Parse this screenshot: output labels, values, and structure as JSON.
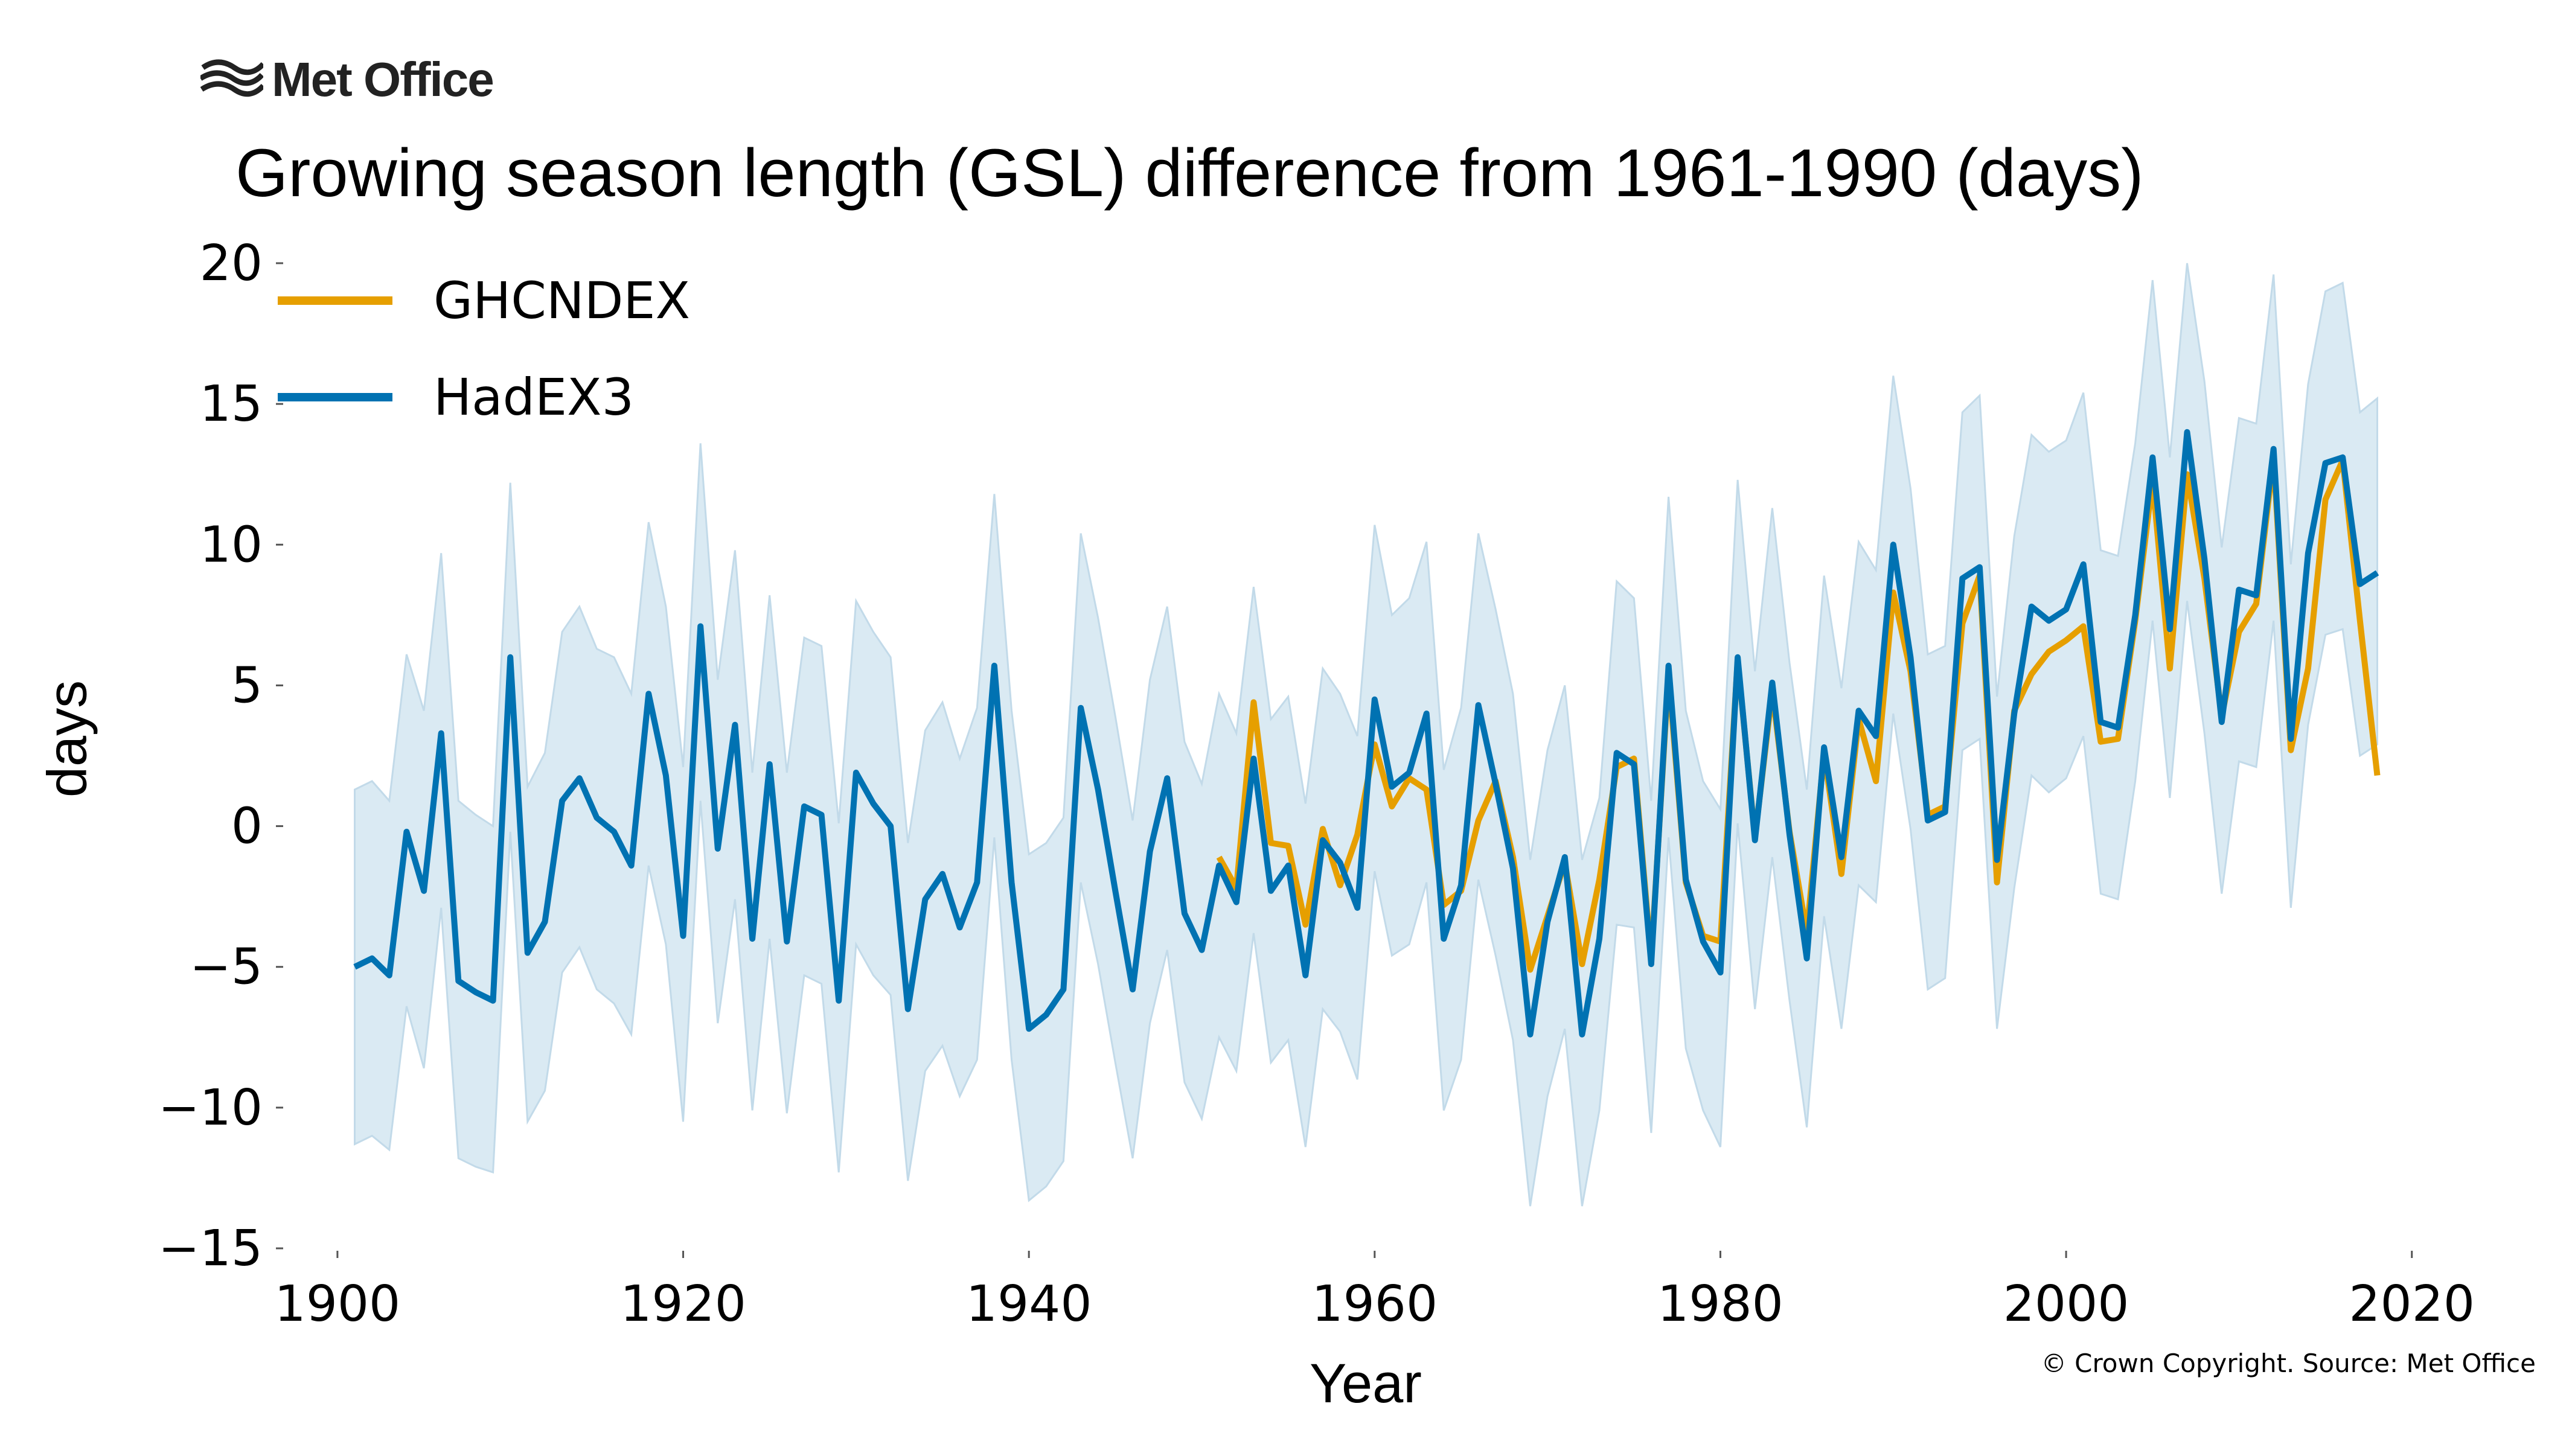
{
  "branding": {
    "logo_text": "Met Office"
  },
  "header": {
    "title": "Growing season length (GSL) difference from 1961-1990 (days)"
  },
  "footer": {
    "copyright": "© Crown Copyright. Source: Met Office"
  },
  "colors": {
    "ghcndex": "#e69f00",
    "hadex3": "#0072b2",
    "band": "#d4e6f1"
  },
  "chart_data": {
    "type": "line",
    "title": "Growing season length (GSL) difference from 1961-1990 (days)",
    "xlabel": "Year",
    "ylabel": "days",
    "xlim": [
      1897,
      2022
    ],
    "ylim": [
      -15,
      20
    ],
    "xticks": [
      1900,
      1920,
      1940,
      1960,
      1980,
      2000,
      2020
    ],
    "yticks": [
      -15,
      -10,
      -5,
      0,
      5,
      10,
      15,
      20
    ],
    "ytick_labels": [
      "−15",
      "−10",
      "−5",
      "0",
      "5",
      "10",
      "15",
      "20"
    ],
    "grid": false,
    "legend": {
      "position": "top-left",
      "entries": [
        "GHCNDEX",
        "HadEX3"
      ]
    },
    "series": [
      {
        "name": "HadEX3",
        "color": "#0072b2",
        "x": [
          1901,
          1902,
          1903,
          1904,
          1905,
          1906,
          1907,
          1908,
          1909,
          1910,
          1911,
          1912,
          1913,
          1914,
          1915,
          1916,
          1917,
          1918,
          1919,
          1920,
          1921,
          1922,
          1923,
          1924,
          1925,
          1926,
          1927,
          1928,
          1929,
          1930,
          1931,
          1932,
          1933,
          1934,
          1935,
          1936,
          1937,
          1938,
          1939,
          1940,
          1941,
          1942,
          1943,
          1944,
          1945,
          1946,
          1947,
          1948,
          1949,
          1950,
          1951,
          1952,
          1953,
          1954,
          1955,
          1956,
          1957,
          1958,
          1959,
          1960,
          1961,
          1962,
          1963,
          1964,
          1965,
          1966,
          1967,
          1968,
          1969,
          1970,
          1971,
          1972,
          1973,
          1974,
          1975,
          1976,
          1977,
          1978,
          1979,
          1980,
          1981,
          1982,
          1983,
          1984,
          1985,
          1986,
          1987,
          1988,
          1989,
          1990,
          1991,
          1992,
          1993,
          1994,
          1995,
          1996,
          1997,
          1998,
          1999,
          2000,
          2001,
          2002,
          2003,
          2004,
          2005,
          2006,
          2007,
          2008,
          2009,
          2010,
          2011,
          2012,
          2013,
          2014,
          2015,
          2016,
          2017,
          2018
        ],
        "values": [
          -5.0,
          -4.7,
          -5.3,
          -0.2,
          -2.3,
          3.3,
          -5.5,
          -5.9,
          -6.2,
          6.0,
          -4.5,
          -3.4,
          0.9,
          1.7,
          0.3,
          -0.2,
          -1.4,
          4.7,
          1.8,
          -3.9,
          7.1,
          -0.8,
          3.6,
          -4.0,
          2.2,
          -4.1,
          0.7,
          0.4,
          -6.2,
          1.9,
          0.8,
          0.0,
          -6.5,
          -2.6,
          -1.7,
          -3.6,
          -2.0,
          5.7,
          -2.0,
          -7.2,
          -6.7,
          -5.8,
          4.2,
          1.3,
          -2.3,
          -5.8,
          -0.9,
          1.7,
          -3.1,
          -4.4,
          -1.4,
          -2.7,
          2.4,
          -2.3,
          -1.4,
          -5.3,
          -0.5,
          -1.3,
          -2.9,
          4.5,
          1.4,
          1.9,
          4.0,
          -4.0,
          -2.1,
          4.3,
          1.5,
          -1.5,
          -7.4,
          -3.4,
          -1.1,
          -7.4,
          -4.0,
          2.6,
          2.2,
          -4.9,
          5.7,
          -1.9,
          -4.1,
          -5.2,
          6.0,
          -0.5,
          5.1,
          -0.3,
          -4.7,
          2.8,
          -1.1,
          4.1,
          3.2,
          10.0,
          6.0,
          0.2,
          0.5,
          8.8,
          9.2,
          -1.2,
          4.0,
          7.8,
          7.3,
          7.7,
          9.3,
          3.7,
          3.5,
          7.5,
          13.1,
          7.0,
          14.0,
          9.5,
          3.7,
          8.4,
          8.2,
          13.4,
          3.1,
          9.7,
          12.9,
          13.1,
          8.6,
          9.0
        ]
      },
      {
        "name": "GHCNDEX",
        "color": "#e69f00",
        "x": [
          1951,
          1952,
          1953,
          1954,
          1955,
          1956,
          1957,
          1958,
          1959,
          1960,
          1961,
          1962,
          1963,
          1964,
          1965,
          1966,
          1967,
          1968,
          1969,
          1970,
          1971,
          1972,
          1973,
          1974,
          1975,
          1976,
          1977,
          1978,
          1979,
          1980,
          1981,
          1982,
          1983,
          1984,
          1985,
          1986,
          1987,
          1988,
          1989,
          1990,
          1991,
          1992,
          1993,
          1994,
          1995,
          1996,
          1997,
          1998,
          1999,
          2000,
          2001,
          2002,
          2003,
          2004,
          2005,
          2006,
          2007,
          2008,
          2009,
          2010,
          2011,
          2012,
          2013,
          2014,
          2015,
          2016,
          2017,
          2018
        ],
        "values": [
          -1.1,
          -2.2,
          4.4,
          -0.6,
          -0.7,
          -3.5,
          -0.1,
          -2.1,
          -0.3,
          2.9,
          0.7,
          1.7,
          1.3,
          -2.8,
          -2.3,
          0.2,
          1.6,
          -1.1,
          -5.1,
          -3.2,
          -1.3,
          -4.9,
          -1.9,
          2.1,
          2.4,
          -4.7,
          5.4,
          -2.0,
          -3.9,
          -4.1,
          5.9,
          -0.4,
          4.8,
          -0.2,
          -3.8,
          2.6,
          -1.7,
          3.8,
          1.6,
          8.3,
          5.5,
          0.4,
          0.7,
          7.2,
          8.9,
          -2.0,
          4.1,
          5.4,
          6.2,
          6.6,
          7.1,
          3.0,
          3.1,
          7.3,
          12.3,
          5.6,
          12.5,
          8.8,
          3.9,
          6.9,
          7.9,
          13.1,
          2.7,
          5.6,
          11.6,
          13.0,
          7.3,
          1.8
        ]
      }
    ],
    "band": {
      "description_series": "HadEX3",
      "x": [
        1901,
        1902,
        1903,
        1904,
        1905,
        1906,
        1907,
        1908,
        1909,
        1910,
        1911,
        1912,
        1913,
        1914,
        1915,
        1916,
        1917,
        1918,
        1919,
        1920,
        1921,
        1922,
        1923,
        1924,
        1925,
        1926,
        1927,
        1928,
        1929,
        1930,
        1931,
        1932,
        1933,
        1934,
        1935,
        1936,
        1937,
        1938,
        1939,
        1940,
        1941,
        1942,
        1943,
        1944,
        1945,
        1946,
        1947,
        1948,
        1949,
        1950,
        1951,
        1952,
        1953,
        1954,
        1955,
        1956,
        1957,
        1958,
        1959,
        1960,
        1961,
        1962,
        1963,
        1964,
        1965,
        1966,
        1967,
        1968,
        1969,
        1970,
        1971,
        1972,
        1973,
        1974,
        1975,
        1976,
        1977,
        1978,
        1979,
        1980,
        1981,
        1982,
        1983,
        1984,
        1985,
        1986,
        1987,
        1988,
        1989,
        1990,
        1991,
        1992,
        1993,
        1994,
        1995,
        1996,
        1997,
        1998,
        1999,
        2000,
        2001,
        2002,
        2003,
        2004,
        2005,
        2006,
        2007,
        2008,
        2009,
        2010,
        2011,
        2012,
        2013,
        2014,
        2015,
        2016,
        2017,
        2018
      ],
      "upper": [
        1.3,
        1.6,
        0.9,
        6.1,
        4.1,
        9.7,
        0.9,
        0.4,
        0.0,
        12.2,
        1.4,
        2.6,
        6.9,
        7.8,
        6.3,
        6.0,
        4.7,
        10.8,
        7.8,
        2.1,
        13.6,
        5.2,
        9.8,
        1.9,
        8.2,
        1.9,
        6.7,
        6.4,
        0.1,
        8.0,
        6.9,
        6.0,
        -0.6,
        3.4,
        4.4,
        2.4,
        4.2,
        11.8,
        4.1,
        -1.0,
        -0.6,
        0.3,
        10.4,
        7.4,
        3.9,
        0.2,
        5.2,
        7.8,
        3.0,
        1.5,
        4.7,
        3.3,
        8.5,
        3.8,
        4.6,
        0.8,
        5.6,
        4.7,
        3.2,
        10.7,
        7.5,
        8.1,
        10.1,
        2.0,
        4.2,
        10.4,
        7.7,
        4.7,
        -1.2,
        2.7,
        5.0,
        -1.2,
        1.0,
        8.7,
        8.1,
        0.9,
        11.7,
        4.1,
        1.6,
        0.6,
        12.3,
        5.5,
        11.3,
        5.8,
        1.3,
        8.9,
        4.9,
        10.1,
        9.1,
        16.0,
        12.0,
        6.1,
        6.4,
        14.7,
        15.3,
        4.6,
        10.3,
        13.9,
        13.3,
        13.7,
        15.4,
        9.8,
        9.6,
        13.6,
        19.4,
        13.1,
        20.0,
        15.8,
        9.9,
        14.5,
        14.3,
        19.6,
        9.3,
        15.7,
        19.0,
        19.3,
        14.7,
        15.2
      ],
      "lower": [
        -11.3,
        -11.0,
        -11.5,
        -6.4,
        -8.6,
        -2.9,
        -11.8,
        -12.1,
        -12.3,
        -0.2,
        -10.5,
        -9.4,
        -5.2,
        -4.3,
        -5.8,
        -6.3,
        -7.4,
        -1.4,
        -4.2,
        -10.5,
        0.9,
        -7.0,
        -2.6,
        -10.1,
        -4.0,
        -10.2,
        -5.3,
        -5.6,
        -12.3,
        -4.2,
        -5.3,
        -6.0,
        -12.6,
        -8.7,
        -7.8,
        -9.6,
        -8.3,
        -0.4,
        -8.3,
        -13.3,
        -12.8,
        -11.9,
        -2.0,
        -4.9,
        -8.4,
        -11.8,
        -7.0,
        -4.4,
        -9.1,
        -10.4,
        -7.5,
        -8.7,
        -3.8,
        -8.4,
        -7.6,
        -11.4,
        -6.5,
        -7.3,
        -9.0,
        -1.6,
        -4.6,
        -4.2,
        -2.0,
        -10.1,
        -8.3,
        -1.9,
        -4.6,
        -7.6,
        -13.5,
        -9.6,
        -7.2,
        -13.5,
        -10.1,
        -3.5,
        -3.6,
        -10.9,
        -0.4,
        -7.9,
        -10.1,
        -11.4,
        0.1,
        -6.5,
        -1.1,
        -6.2,
        -10.7,
        -3.2,
        -7.2,
        -2.1,
        -2.7,
        4.0,
        -0.1,
        -5.8,
        -5.4,
        2.7,
        3.1,
        -7.2,
        -2.2,
        1.8,
        1.2,
        1.7,
        3.2,
        -2.4,
        -2.6,
        1.6,
        7.3,
        1.0,
        8.0,
        3.3,
        -2.4,
        2.3,
        2.1,
        7.3,
        -2.9,
        3.6,
        6.8,
        7.0,
        2.5,
        2.9
      ]
    }
  }
}
